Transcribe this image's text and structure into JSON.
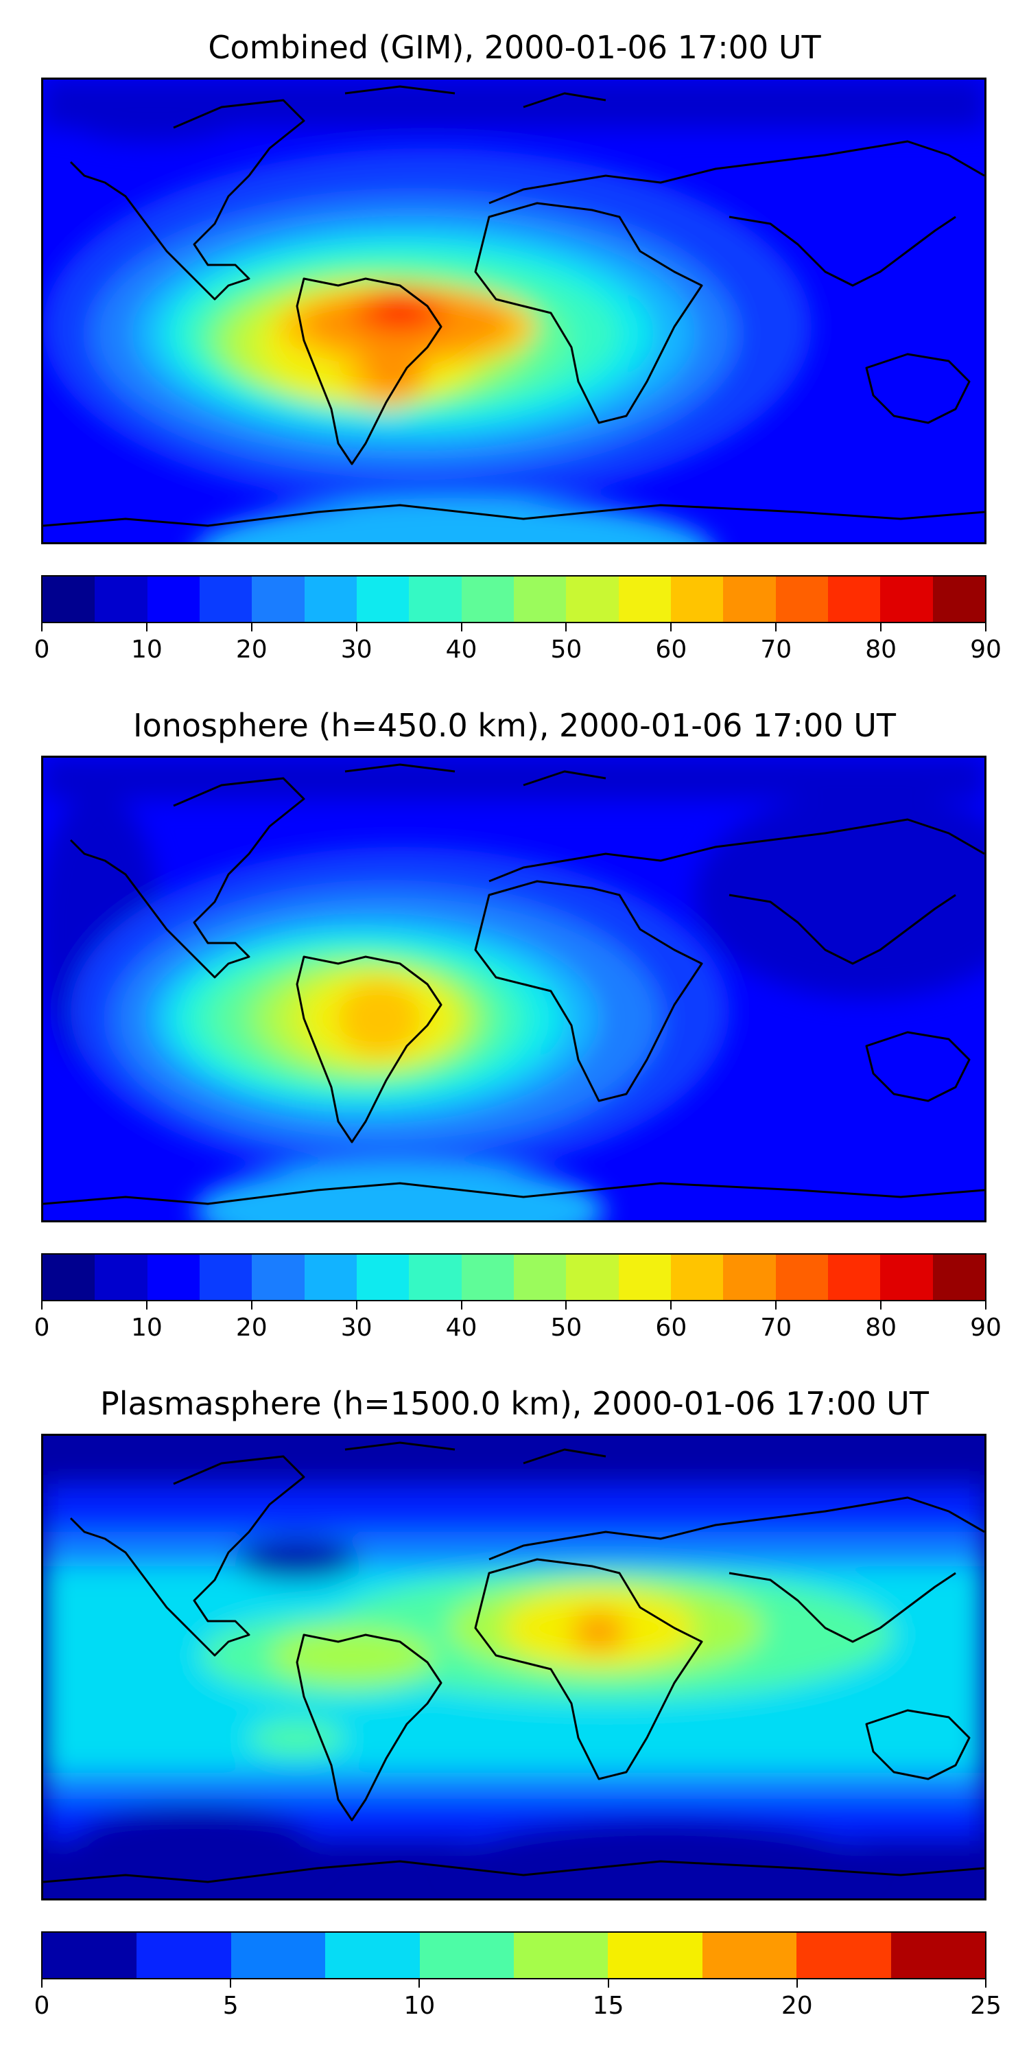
{
  "panels": [
    {
      "title": "Combined (GIM), 2000-01-06 17:00 UT",
      "colorbar": {
        "ticks": [
          "0",
          "10",
          "20",
          "30",
          "40",
          "50",
          "60",
          "70",
          "80",
          "90"
        ],
        "colors": [
          "#00008f",
          "#0000cd",
          "#0000ff",
          "#0a3cff",
          "#1a7dff",
          "#12b3ff",
          "#0feaef",
          "#35f9c4",
          "#5ffc98",
          "#9bfb5c",
          "#c9f833",
          "#f3f10e",
          "#ffc400",
          "#ff9200",
          "#ff6000",
          "#ff2d00",
          "#e00000",
          "#990000"
        ]
      }
    },
    {
      "title": "Ionosphere  (h=450.0 km), 2000-01-06 17:00 UT",
      "colorbar": {
        "ticks": [
          "0",
          "10",
          "20",
          "30",
          "40",
          "50",
          "60",
          "70",
          "80",
          "90"
        ],
        "colors": [
          "#00008f",
          "#0000cd",
          "#0000ff",
          "#0a3cff",
          "#1a7dff",
          "#12b3ff",
          "#0feaef",
          "#35f9c4",
          "#5ffc98",
          "#9bfb5c",
          "#c9f833",
          "#f3f10e",
          "#ffc400",
          "#ff9200",
          "#ff6000",
          "#ff2d00",
          "#e00000",
          "#990000"
        ]
      }
    },
    {
      "title": "Plasmasphere (h=1500.0 km), 2000-01-06 17:00 UT",
      "colorbar": {
        "ticks": [
          "0",
          "5",
          "10",
          "15",
          "20",
          "25"
        ],
        "colors": [
          "#0000a8",
          "#0624ff",
          "#0a7dff",
          "#06dcf5",
          "#4dfca6",
          "#a6fc4a",
          "#f5ef00",
          "#ff9a00",
          "#ff3d00",
          "#b00000"
        ]
      }
    }
  ]
}
